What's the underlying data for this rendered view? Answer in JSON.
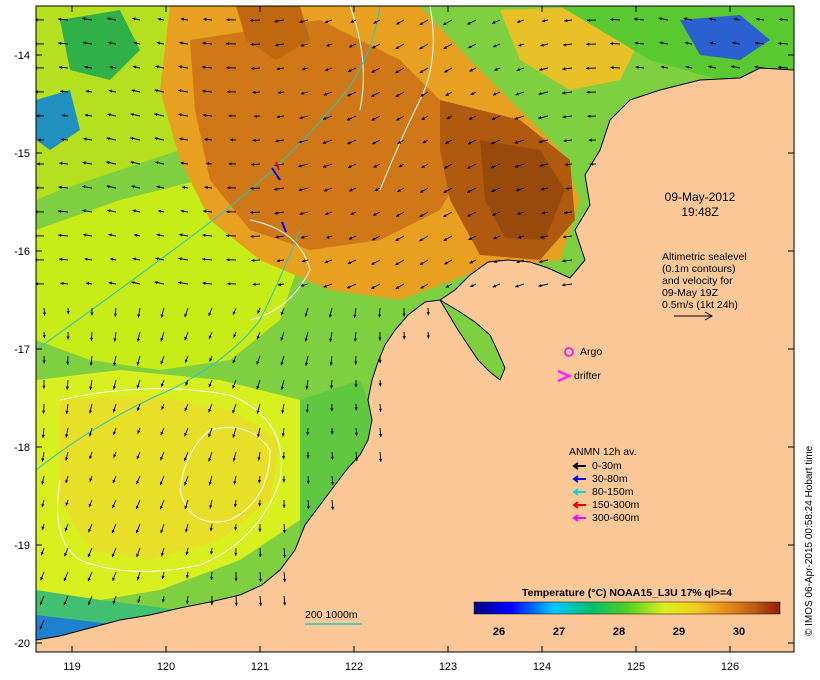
{
  "map": {
    "date_label": "09-May-2012",
    "time_label": "19:48Z",
    "altimetry_lines": [
      "Altimetric sealevel",
      "(0.1m contours)",
      "and velocity for",
      "09-May 19Z",
      "0.5m/s (1kt 24h)"
    ],
    "argo_label": "Argo",
    "drifter_label": "drifter",
    "bathy_label": "200  1000m",
    "anmn": {
      "title": "ANMN 12h av.",
      "items": [
        {
          "label": "0-30m",
          "color": "#000000"
        },
        {
          "label": "30-80m",
          "color": "#0000ee"
        },
        {
          "label": "80-150m",
          "color": "#00d8d8"
        },
        {
          "label": "150-300m",
          "color": "#ee0000"
        },
        {
          "label": "300-600m",
          "color": "#ff00ff"
        }
      ]
    },
    "colorbar": {
      "title": "Temperature (°C) NOAA15_L3U 17% ql>=4",
      "ticks": [
        "26",
        "27",
        "28",
        "29",
        "30"
      ],
      "min": 25.5,
      "max": 30.6
    },
    "credit": "© IMOS 06-Apr-2015 00:58:24 Hobart time",
    "x_ticks": [
      "119",
      "120",
      "121",
      "122",
      "123",
      "124",
      "125",
      "126"
    ],
    "y_ticks": [
      "-14",
      "-15",
      "-16",
      "-17",
      "-18",
      "-19",
      "-20"
    ],
    "colors": {
      "land": "#fcc898",
      "argo": "#ee00ee",
      "drifter": "#ff22ff",
      "contour": "#ffffff",
      "isobath": "#22c8c8"
    }
  }
}
